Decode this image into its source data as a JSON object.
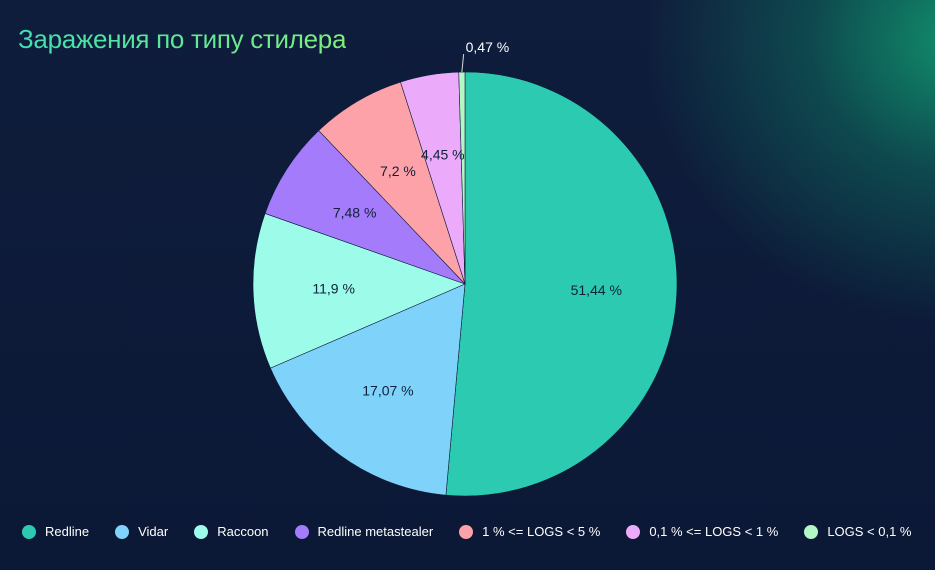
{
  "chart_data": {
    "type": "pie",
    "title": "Заражения по типу стилера",
    "categories": [
      "Redline",
      "Vidar",
      "Raccoon",
      "Redline metastealer",
      "1 % <= LOGS < 5 %",
      "0,1 % <= LOGS < 1 %",
      "LOGS < 0,1 %"
    ],
    "values": [
      51.44,
      17.07,
      11.9,
      7.48,
      7.2,
      4.45,
      0.47
    ],
    "labels": [
      "51,44 %",
      "17,07 %",
      "11,9 %",
      "7,48 %",
      "7,2 %",
      "4,45 %",
      "0,47 %"
    ],
    "colors": [
      "#2ccbb1",
      "#7fd3fb",
      "#9cfbe9",
      "#a47bfb",
      "#fca2a8",
      "#ecaafb",
      "#b3f7c4"
    ],
    "legend_position": "bottom"
  }
}
